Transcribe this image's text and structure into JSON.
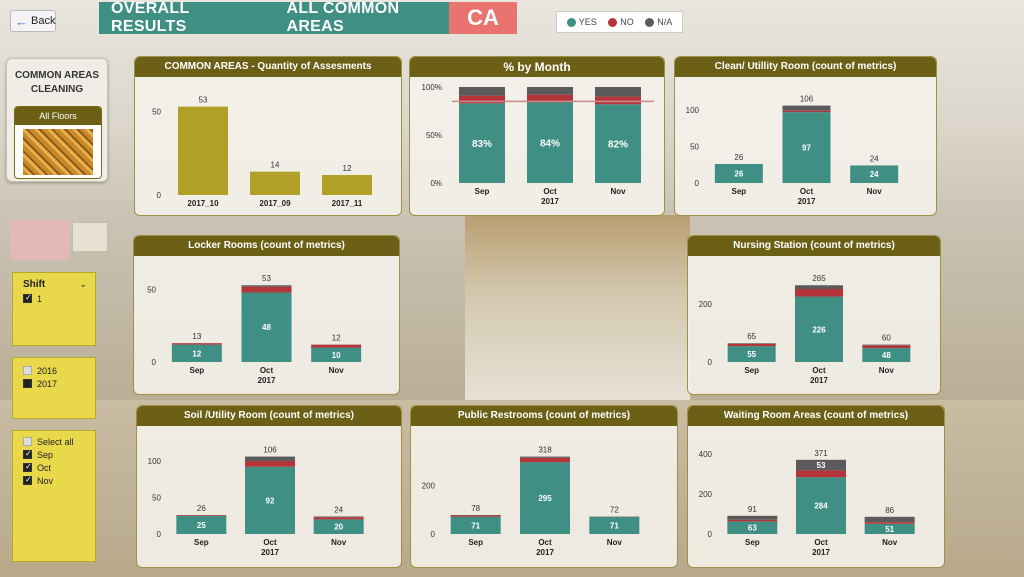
{
  "header": {
    "back_label": "Back",
    "title_left": "OVERALL RESULTS",
    "title_right": "ALL COMMON AREAS",
    "code": "CA"
  },
  "legend": [
    {
      "label": "YES",
      "color": "#3f8f84"
    },
    {
      "label": "NO",
      "color": "#b5343a"
    },
    {
      "label": "N/A",
      "color": "#5b5b5b"
    }
  ],
  "area_card": {
    "title_line1": "COMMON AREAS",
    "title_line2": "CLEANING",
    "floor_label": "All Floors"
  },
  "shift_slicer": {
    "title": "Shift",
    "items": [
      {
        "label": "1",
        "checked": true
      }
    ]
  },
  "year_slicer": {
    "items": [
      {
        "label": "2016",
        "checked": false
      },
      {
        "label": "2017",
        "checked": true
      }
    ]
  },
  "month_slicer": {
    "items": [
      {
        "label": "Select all",
        "checked": false
      },
      {
        "label": "Sep",
        "checked": true
      },
      {
        "label": "Oct",
        "checked": true
      },
      {
        "label": "Nov",
        "checked": true
      }
    ]
  },
  "colors": {
    "yes": "#3f8f84",
    "no": "#b5343a",
    "na": "#5b5b5b",
    "bar": "#b0a027"
  },
  "chart_data": [
    {
      "id": "assessments",
      "type": "bar",
      "title": "COMMON AREAS  - Quantity of Assesments",
      "categories": [
        "2017_10",
        "2017_09",
        "2017_11"
      ],
      "values": [
        53,
        14,
        12
      ],
      "yticks": [
        0,
        50
      ],
      "ylim": [
        0,
        60
      ]
    },
    {
      "id": "pct_month",
      "type": "bar",
      "stacked_percent": true,
      "title": "% by Month",
      "categories": [
        "Sep",
        "Oct",
        "Nov"
      ],
      "year_label": "2017",
      "yticks": [
        "0%",
        "50%",
        "100%"
      ],
      "series": [
        {
          "name": "YES",
          "values": [
            83,
            84,
            82
          ]
        },
        {
          "name": "NO",
          "values": [
            8,
            8,
            8
          ]
        },
        {
          "name": "N/A",
          "values": [
            9,
            8,
            10
          ]
        }
      ],
      "labels": [
        "83%",
        "84%",
        "82%"
      ],
      "target_line": 85
    },
    {
      "id": "clean_utility",
      "type": "bar",
      "title": "Clean/ Utillity Room (count of metrics)",
      "categories": [
        "Sep",
        "Oct",
        "Nov"
      ],
      "year_label": "2017",
      "yticks": [
        0,
        50,
        100
      ],
      "ylim": [
        0,
        115
      ],
      "totals": [
        26,
        106,
        24
      ],
      "series": [
        {
          "name": "YES",
          "values": [
            26,
            97,
            24
          ],
          "labels": [
            "26",
            "97",
            "24"
          ]
        },
        {
          "name": "NO",
          "values": [
            0,
            2,
            0
          ]
        },
        {
          "name": "N/A",
          "values": [
            0,
            7,
            0
          ]
        }
      ]
    },
    {
      "id": "locker_rooms",
      "type": "bar",
      "title": "Locker Rooms (count of metrics)",
      "categories": [
        "Sep",
        "Oct",
        "Nov"
      ],
      "year_label": "2017",
      "yticks": [
        0,
        50
      ],
      "ylim": [
        0,
        58
      ],
      "totals": [
        13,
        53,
        12
      ],
      "series": [
        {
          "name": "YES",
          "values": [
            12,
            48,
            10
          ],
          "labels": [
            "12",
            "48",
            "10"
          ]
        },
        {
          "name": "NO",
          "values": [
            1,
            4,
            2
          ]
        },
        {
          "name": "N/A",
          "values": [
            0,
            1,
            0
          ]
        }
      ]
    },
    {
      "id": "nursing_station",
      "type": "bar",
      "title": "Nursing Station (count of metrics)",
      "categories": [
        "Sep",
        "Oct",
        "Nov"
      ],
      "year_label": "2017",
      "yticks": [
        0,
        200
      ],
      "ylim": [
        0,
        290
      ],
      "totals": [
        65,
        265,
        60
      ],
      "series": [
        {
          "name": "YES",
          "values": [
            55,
            226,
            48
          ],
          "labels": [
            "55",
            "226",
            "48"
          ]
        },
        {
          "name": "NO",
          "values": [
            8,
            26,
            10
          ]
        },
        {
          "name": "N/A",
          "values": [
            2,
            13,
            2
          ]
        }
      ]
    },
    {
      "id": "soil_utility",
      "type": "bar",
      "title": "Soil /Utility Room (count of metrics)",
      "categories": [
        "Sep",
        "Oct",
        "Nov"
      ],
      "year_label": "2017",
      "yticks": [
        0,
        50,
        100
      ],
      "ylim": [
        0,
        115
      ],
      "totals": [
        26,
        106,
        24
      ],
      "series": [
        {
          "name": "YES",
          "values": [
            25,
            92,
            20
          ],
          "labels": [
            "25",
            "92",
            "20"
          ]
        },
        {
          "name": "NO",
          "values": [
            1,
            8,
            3
          ]
        },
        {
          "name": "N/A",
          "values": [
            0,
            6,
            1
          ]
        }
      ]
    },
    {
      "id": "public_restrooms",
      "type": "bar",
      "title": "Public Restrooms (count of metrics)",
      "categories": [
        "Sep",
        "Oct",
        "Nov"
      ],
      "year_label": "2017",
      "yticks": [
        0,
        200
      ],
      "ylim": [
        0,
        345
      ],
      "totals": [
        78,
        318,
        72
      ],
      "series": [
        {
          "name": "YES",
          "values": [
            71,
            295,
            71
          ],
          "labels": [
            "71",
            "295",
            "71"
          ]
        },
        {
          "name": "NO",
          "values": [
            5,
            18,
            1
          ]
        },
        {
          "name": "N/A",
          "values": [
            2,
            5,
            0
          ]
        }
      ]
    },
    {
      "id": "waiting_room",
      "type": "bar",
      "title": "Waiting Room Areas (count of metrics)",
      "categories": [
        "Sep",
        "Oct",
        "Nov"
      ],
      "year_label": "2017",
      "yticks": [
        0,
        200,
        400
      ],
      "ylim": [
        0,
        420
      ],
      "totals": [
        91,
        371,
        86
      ],
      "series": [
        {
          "name": "YES",
          "values": [
            63,
            284,
            51
          ],
          "labels": [
            "63",
            "284",
            "51"
          ]
        },
        {
          "name": "NO",
          "values": [
            8,
            34,
            8
          ]
        },
        {
          "name": "N/A",
          "values": [
            20,
            53,
            27
          ],
          "labels": [
            "",
            "53",
            ""
          ]
        }
      ]
    }
  ]
}
